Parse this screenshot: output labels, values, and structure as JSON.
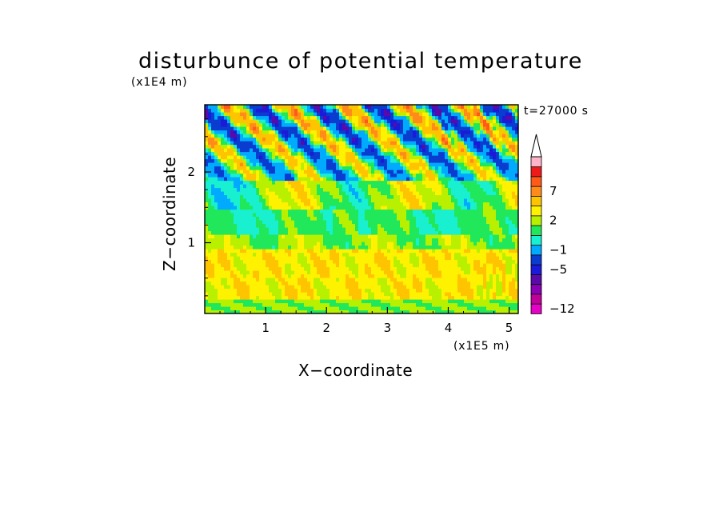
{
  "chart_data": {
    "type": "heatmap",
    "title": "disturbunce of potential temperature",
    "xlabel": "X−coordinate",
    "ylabel": "Z−coordinate",
    "x_unit": "(x1E5 m)",
    "y_unit": "(x1E4 m)",
    "time_label": "t=27000 s",
    "xlim": [
      0,
      5.15
    ],
    "ylim": [
      0,
      2.95
    ],
    "x_ticks": [
      1,
      2,
      3,
      4,
      5
    ],
    "x_tick_labels": [
      "1",
      "2",
      "3",
      "4",
      "5"
    ],
    "y_ticks": [
      1,
      2
    ],
    "y_tick_labels": [
      "1",
      "2"
    ],
    "colorbar": {
      "levels": [
        -12,
        -10,
        -8,
        -6,
        -5,
        -3,
        -1,
        0,
        1,
        2,
        3,
        5,
        7,
        9,
        10
      ],
      "colors": [
        "#e600c8",
        "#c0009a",
        "#8a00b4",
        "#5a0aa8",
        "#1a1ad8",
        "#0a3cd0",
        "#00aaff",
        "#18f0d0",
        "#20e85a",
        "#b8f000",
        "#fff200",
        "#ffc400",
        "#ff8c1a",
        "#ff5a18",
        "#ee1a1a",
        "#ffb4c8"
      ],
      "tick_labels": [
        "7",
        "2",
        "−1",
        "−5",
        "−12"
      ],
      "tick_values": [
        7,
        2,
        -1,
        -5,
        -12
      ],
      "extend": "max"
    },
    "field_description_bands": [
      {
        "z_range": [
          0,
          0.2
        ],
        "dominant_value": 1.5
      },
      {
        "z_range": [
          0.2,
          0.9
        ],
        "dominant_value": 3
      },
      {
        "z_range": [
          0.9,
          1.4
        ],
        "dominant_value": 0.5
      },
      {
        "z_range": [
          1.4,
          1.9
        ],
        "dominant_value": 1.5
      },
      {
        "z_range": [
          1.9,
          2.95
        ],
        "dominant_value": -3
      }
    ]
  }
}
